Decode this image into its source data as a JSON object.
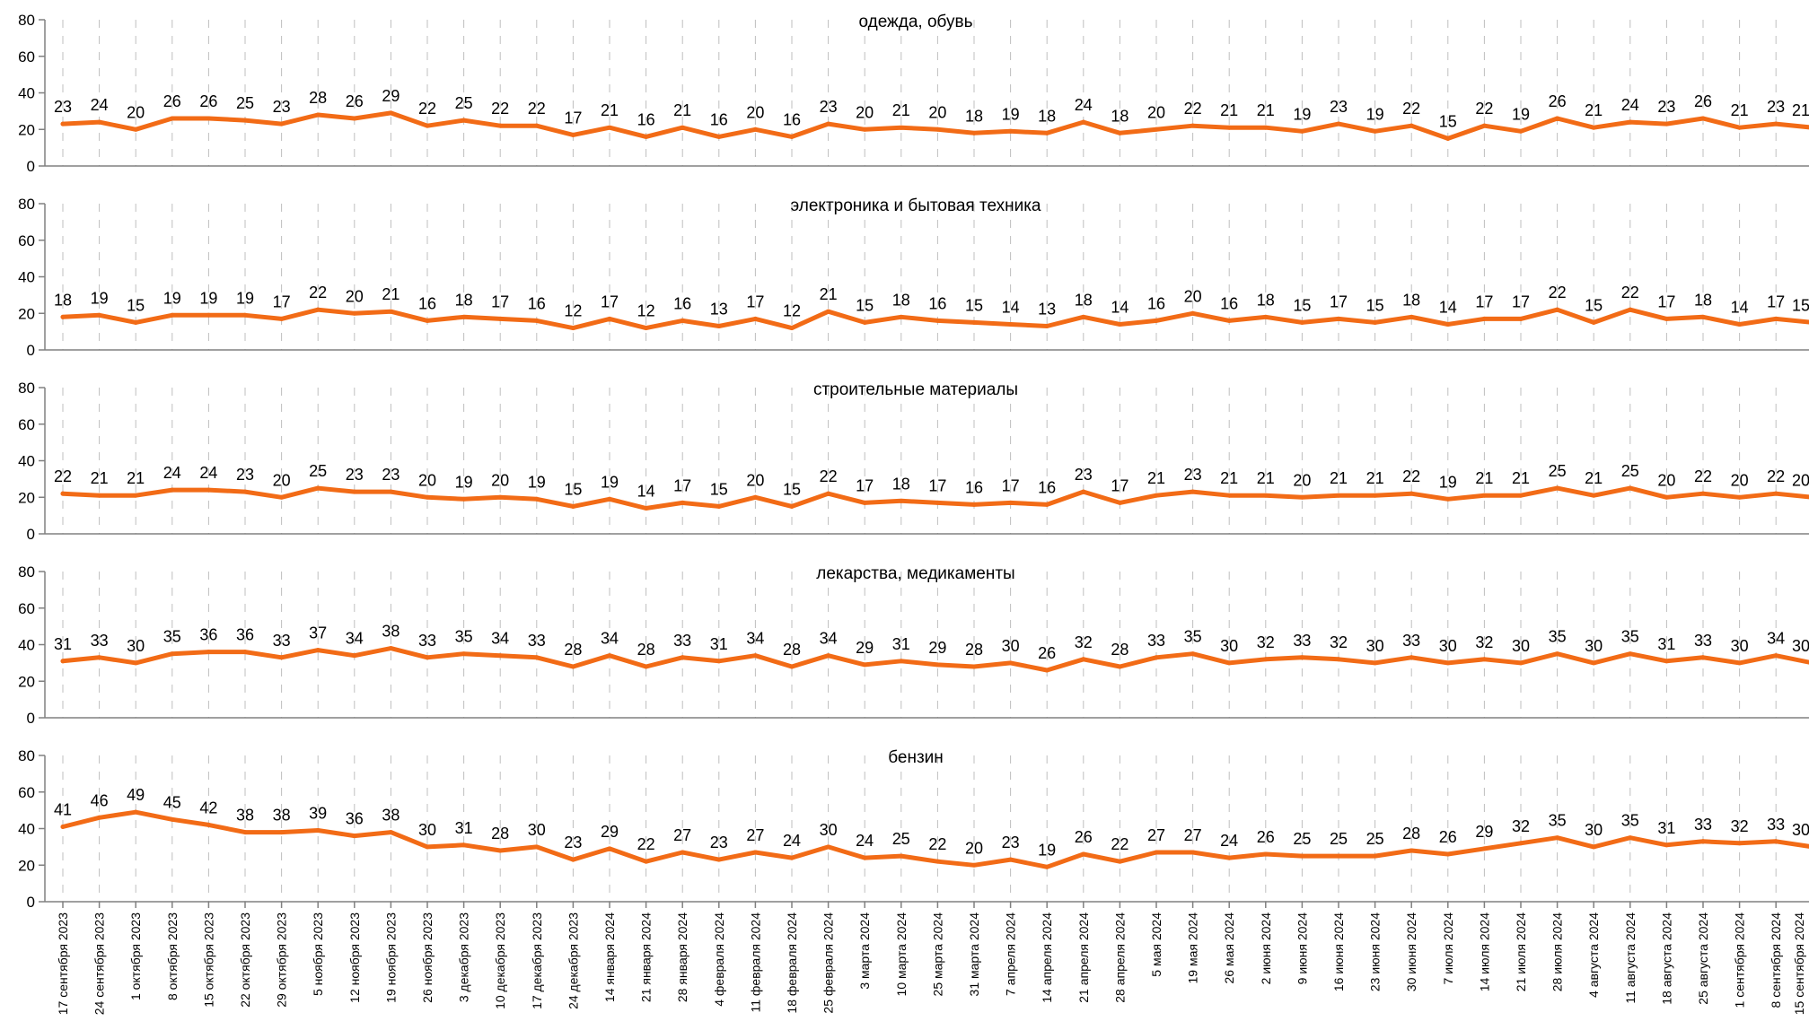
{
  "chart_data": [
    {
      "type": "line",
      "title": "одежда, обувь",
      "ylim": [
        0,
        80
      ],
      "yticks": [
        0,
        20,
        40,
        60,
        80
      ],
      "grid": "vertical dashed",
      "values": [
        23,
        24,
        20,
        26,
        26,
        25,
        23,
        28,
        26,
        29,
        22,
        25,
        22,
        22,
        17,
        21,
        16,
        21,
        16,
        20,
        16,
        23,
        20,
        21,
        20,
        18,
        19,
        18,
        24,
        18,
        20,
        22,
        21,
        21,
        19,
        23,
        19,
        22,
        15,
        22,
        19,
        26,
        21,
        24,
        23,
        26,
        21,
        23,
        21
      ]
    },
    {
      "type": "line",
      "title": "электроника и бытовая техника",
      "ylim": [
        0,
        80
      ],
      "yticks": [
        0,
        20,
        40,
        60,
        80
      ],
      "grid": "vertical dashed",
      "values": [
        18,
        19,
        15,
        19,
        19,
        19,
        17,
        22,
        20,
        21,
        16,
        18,
        17,
        16,
        12,
        17,
        12,
        16,
        13,
        17,
        12,
        21,
        15,
        18,
        16,
        15,
        14,
        13,
        18,
        14,
        16,
        20,
        16,
        18,
        15,
        17,
        15,
        18,
        14,
        17,
        17,
        22,
        15,
        22,
        17,
        18,
        14,
        17,
        15
      ]
    },
    {
      "type": "line",
      "title": "строительные материалы",
      "ylim": [
        0,
        80
      ],
      "yticks": [
        0,
        20,
        40,
        60,
        80
      ],
      "grid": "vertical dashed",
      "values": [
        22,
        21,
        21,
        24,
        24,
        23,
        20,
        25,
        23,
        23,
        20,
        19,
        20,
        19,
        15,
        19,
        14,
        17,
        15,
        20,
        15,
        22,
        17,
        18,
        17,
        16,
        17,
        16,
        23,
        17,
        21,
        23,
        21,
        21,
        20,
        21,
        21,
        22,
        19,
        21,
        21,
        25,
        21,
        25,
        20,
        22,
        20,
        22,
        20
      ]
    },
    {
      "type": "line",
      "title": "лекарства, медикаменты",
      "ylim": [
        0,
        80
      ],
      "yticks": [
        0,
        20,
        40,
        60,
        80
      ],
      "grid": "vertical dashed",
      "values": [
        31,
        33,
        30,
        35,
        36,
        36,
        33,
        37,
        34,
        38,
        33,
        35,
        34,
        33,
        28,
        34,
        28,
        33,
        31,
        34,
        28,
        34,
        29,
        31,
        29,
        28,
        30,
        26,
        32,
        28,
        33,
        35,
        30,
        32,
        33,
        32,
        30,
        33,
        30,
        32,
        30,
        35,
        30,
        35,
        31,
        33,
        30,
        34,
        30
      ]
    },
    {
      "type": "line",
      "title": "бензин",
      "ylim": [
        0,
        80
      ],
      "yticks": [
        0,
        20,
        40,
        60,
        80
      ],
      "grid": "vertical dashed",
      "values": [
        41,
        46,
        49,
        45,
        42,
        38,
        38,
        39,
        36,
        38,
        30,
        31,
        28,
        30,
        23,
        29,
        22,
        27,
        23,
        27,
        24,
        30,
        24,
        25,
        22,
        20,
        23,
        19,
        26,
        22,
        27,
        27,
        24,
        26,
        25,
        25,
        25,
        28,
        26,
        29,
        32,
        35,
        30,
        35,
        31,
        33,
        32,
        33,
        30
      ]
    }
  ],
  "categories": [
    "17 сентября 2023",
    "24 сентября 2023",
    "1 октября 2023",
    "8 октября 2023",
    "15 октября 2023",
    "22 октября 2023",
    "29 октября 2023",
    "5 ноября 2023",
    "12 ноября 2023",
    "19 ноября 2023",
    "26 ноября 2023",
    "3 декабря 2023",
    "10 декабря 2023",
    "17 декабря 2023",
    "24 декабря 2023",
    "14 января 2024",
    "21 января 2024",
    "28 января 2024",
    "4 февраля 2024",
    "11 февраля 2024",
    "18 февраля 2024",
    "25 февраля 2024",
    "3 марта 2024",
    "10 марта 2024",
    "25 марта 2024",
    "31 марта 2024",
    "7 апреля 2024",
    "14 апреля 2024",
    "21 апреля 2024",
    "28 апреля 2024",
    "5 мая 2024",
    "19 мая 2024",
    "26 мая 2024",
    "2 июня 2024",
    "9 июня 2024",
    "16 июня 2024",
    "23 июня 2024",
    "30 июня 2024",
    "7 июля 2024",
    "14 июля 2024",
    "21 июля 2024",
    "28 июля 2024",
    "4 августа 2024",
    "11 августа 2024",
    "18 августа 2024",
    "25 августа 2024",
    "1 сентября 2024",
    "8 сентября 2024",
    "15 сентября 2024"
  ],
  "colors": {
    "line": "#f26b16",
    "axis": "#808080",
    "grid": "#bfbfbf",
    "text": "#000000"
  }
}
